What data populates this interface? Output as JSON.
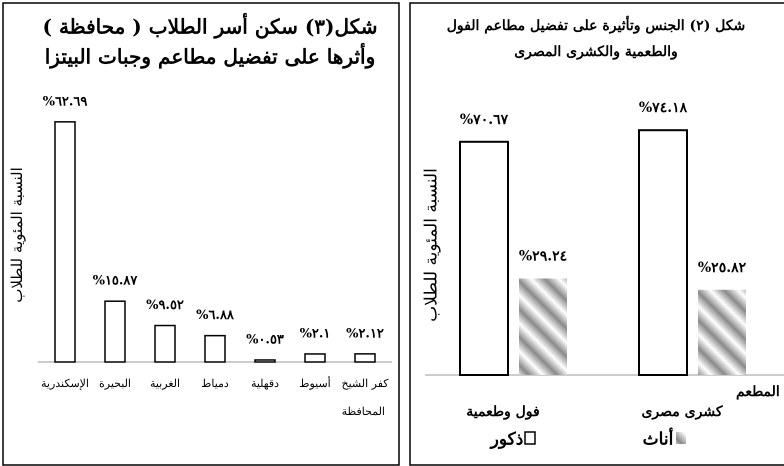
{
  "chart_data": [
    {
      "type": "bar",
      "title": "شكل(٣) سكن أسر الطلاب ( محافظة )",
      "subtitle": "وأثرها على تفضيل مطاعم وجبات البيتزا",
      "y_label": "النسبة المئوية للطلاب",
      "x_label": "المحافظة",
      "categories": [
        "الإسكندرية",
        "البحيرة",
        "الغربية",
        "دمياط",
        "دقهلية",
        "أسيوط",
        "كفر الشيخ"
      ],
      "values": [
        62.69,
        15.87,
        9.52,
        6.88,
        0.53,
        2.1,
        2.12
      ],
      "value_labels": [
        "%٦٢.٦٩",
        "%١٥.٨٧",
        "%٩.٥٢",
        "%٦.٨٨",
        "%٠.٥٣",
        "%٢.١",
        "%٢.١٢"
      ],
      "color": "#ffffff",
      "ylim": [
        0,
        65
      ]
    },
    {
      "type": "grouped-bar",
      "title": "شكل (٢) الجنس وتأثيرة على تفضيل مطاعم الفول",
      "subtitle": "والطعمية والكشرى المصرى",
      "y_label": "النسبة المئوية للطلاب",
      "x_label": "نوع المطعم",
      "categories": [
        "فول وطعمية",
        "كشرى مصرى"
      ],
      "series": [
        {
          "name": "ذكور",
          "color": "#ffffff",
          "values": [
            70.67,
            74.18
          ],
          "value_labels": [
            "%٧٠.٦٧",
            "%٧٤.١٨"
          ]
        },
        {
          "name": "أناث",
          "color": "#8a8a8a",
          "values": [
            29.24,
            25.82
          ],
          "value_labels": [
            "%٢٩.٢٤",
            "%٢٥.٨٢"
          ]
        }
      ],
      "ylim": [
        0,
        80
      ]
    }
  ]
}
